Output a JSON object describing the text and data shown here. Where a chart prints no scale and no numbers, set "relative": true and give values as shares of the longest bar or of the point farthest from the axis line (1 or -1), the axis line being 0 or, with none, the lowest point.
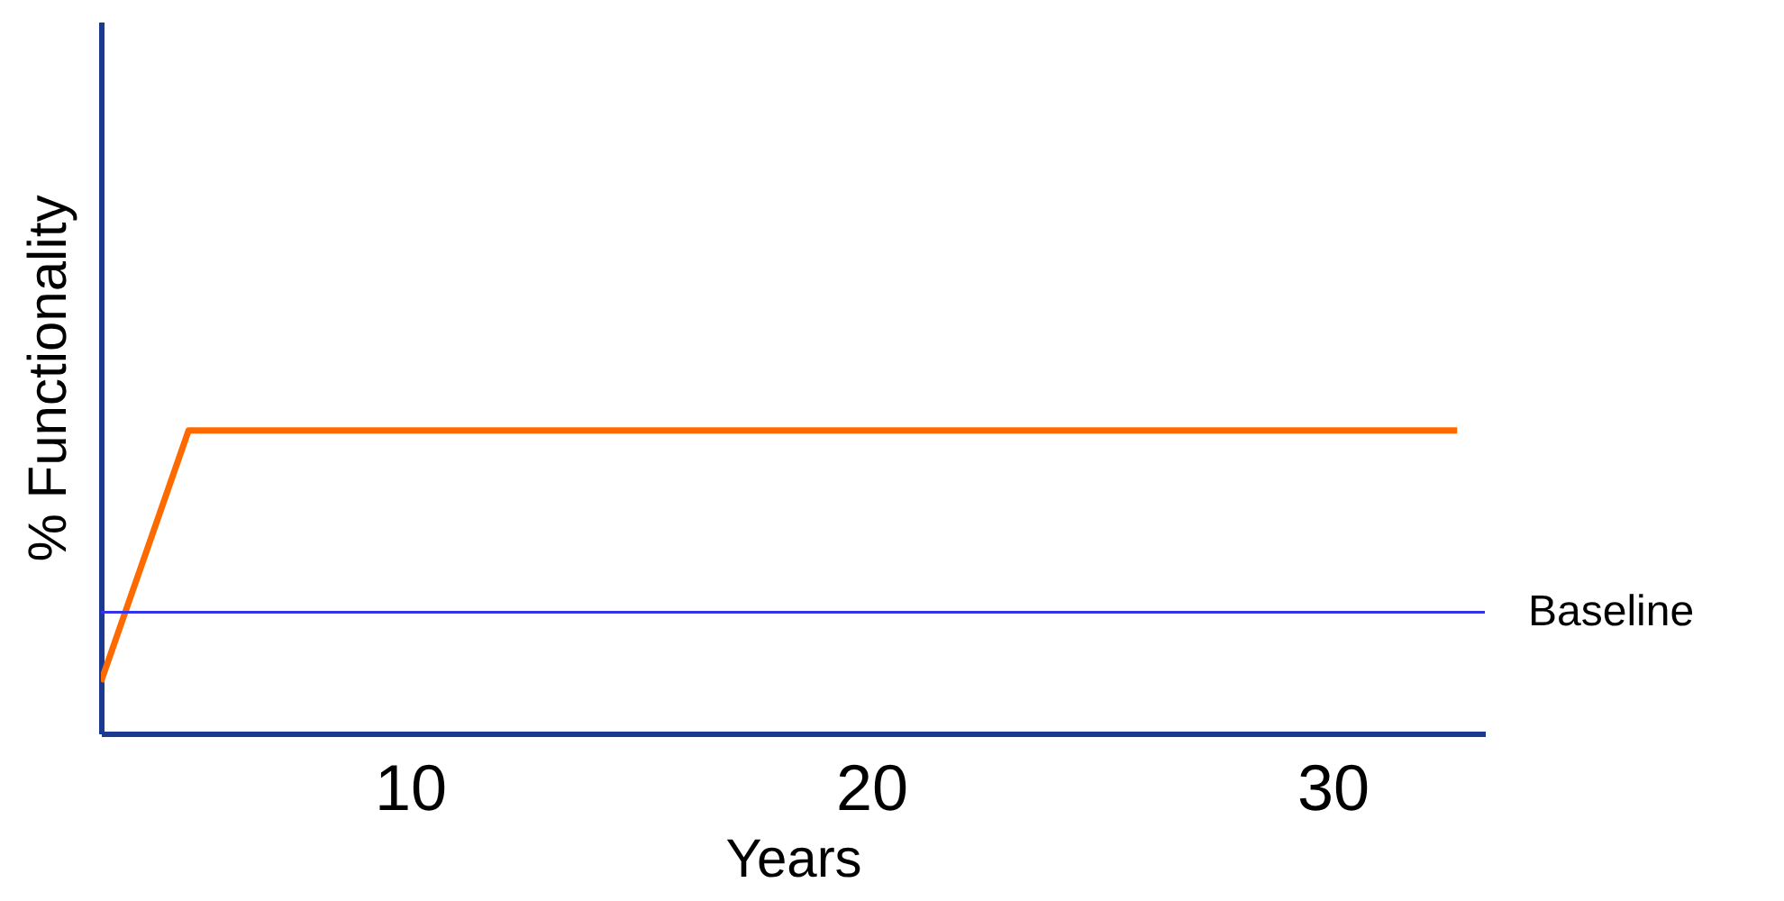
{
  "chart_data": {
    "type": "line",
    "relative": true,
    "xlabel": "Years",
    "ylabel": "% Functionality",
    "xlim": [
      3.3,
      33.3
    ],
    "xticks": [
      10,
      20,
      30
    ],
    "series": [
      {
        "color": "#ff6a00",
        "x": [
          3.3,
          5.2,
          32.7
        ],
        "values": [
          0.17,
          1,
          1
        ]
      }
    ],
    "ref_lines": [
      {
        "axis": "y",
        "value": 0.4,
        "label": "Baseline",
        "color": "#3333ee"
      }
    ]
  }
}
